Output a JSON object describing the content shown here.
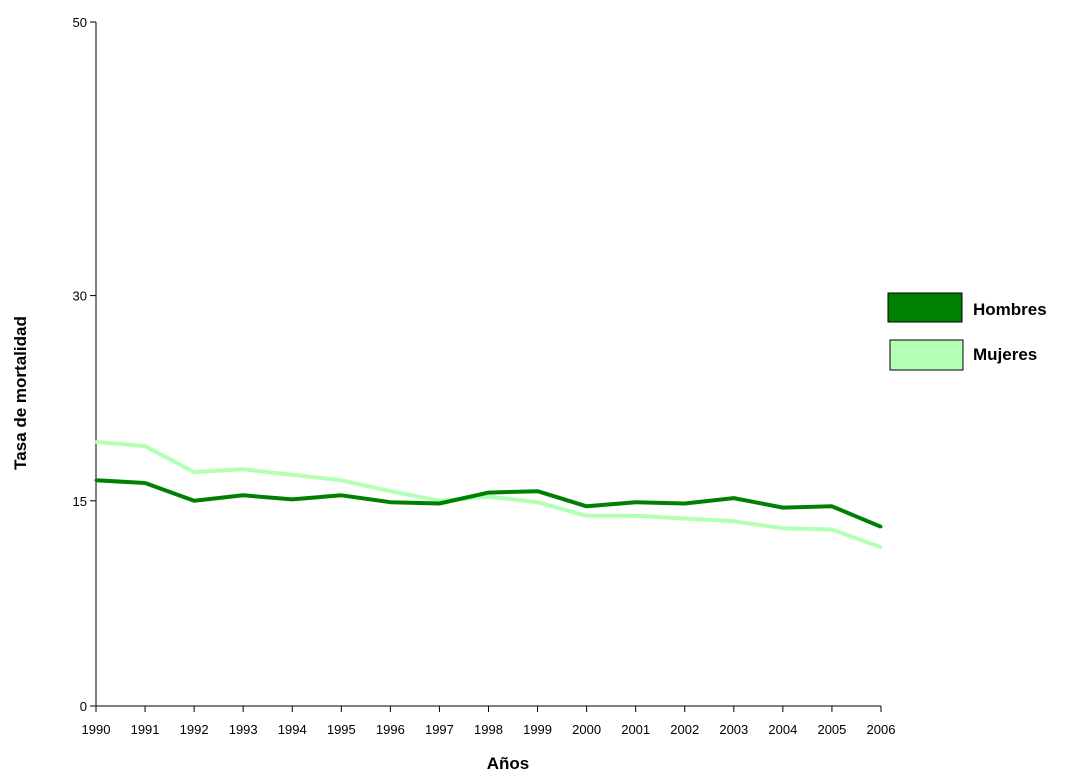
{
  "chart_data": {
    "type": "line",
    "title": "",
    "xlabel": "Años",
    "ylabel": "Tasa de mortalidad",
    "x": [
      "1990",
      "1991",
      "1992",
      "1993",
      "1994",
      "1995",
      "1996",
      "1997",
      "1998",
      "1999",
      "2000",
      "2001",
      "2002",
      "2003",
      "2004",
      "2005",
      "2006"
    ],
    "ylim": [
      0,
      50
    ],
    "yticks": [
      0,
      15,
      30,
      50
    ],
    "grid": false,
    "legend_position": "right",
    "series": [
      {
        "name": "Hombres",
        "color": "#008000",
        "values": [
          16.5,
          16.3,
          15.0,
          15.4,
          15.1,
          15.4,
          14.9,
          14.8,
          15.6,
          15.7,
          14.6,
          14.9,
          14.8,
          15.2,
          14.5,
          14.6,
          13.1
        ]
      },
      {
        "name": "Mujeres",
        "color": "#b3ffb3",
        "values": [
          19.3,
          19.0,
          17.1,
          17.3,
          16.9,
          16.5,
          15.7,
          15.0,
          15.3,
          14.9,
          13.9,
          13.9,
          13.7,
          13.5,
          13.0,
          12.9,
          11.6
        ]
      }
    ]
  }
}
